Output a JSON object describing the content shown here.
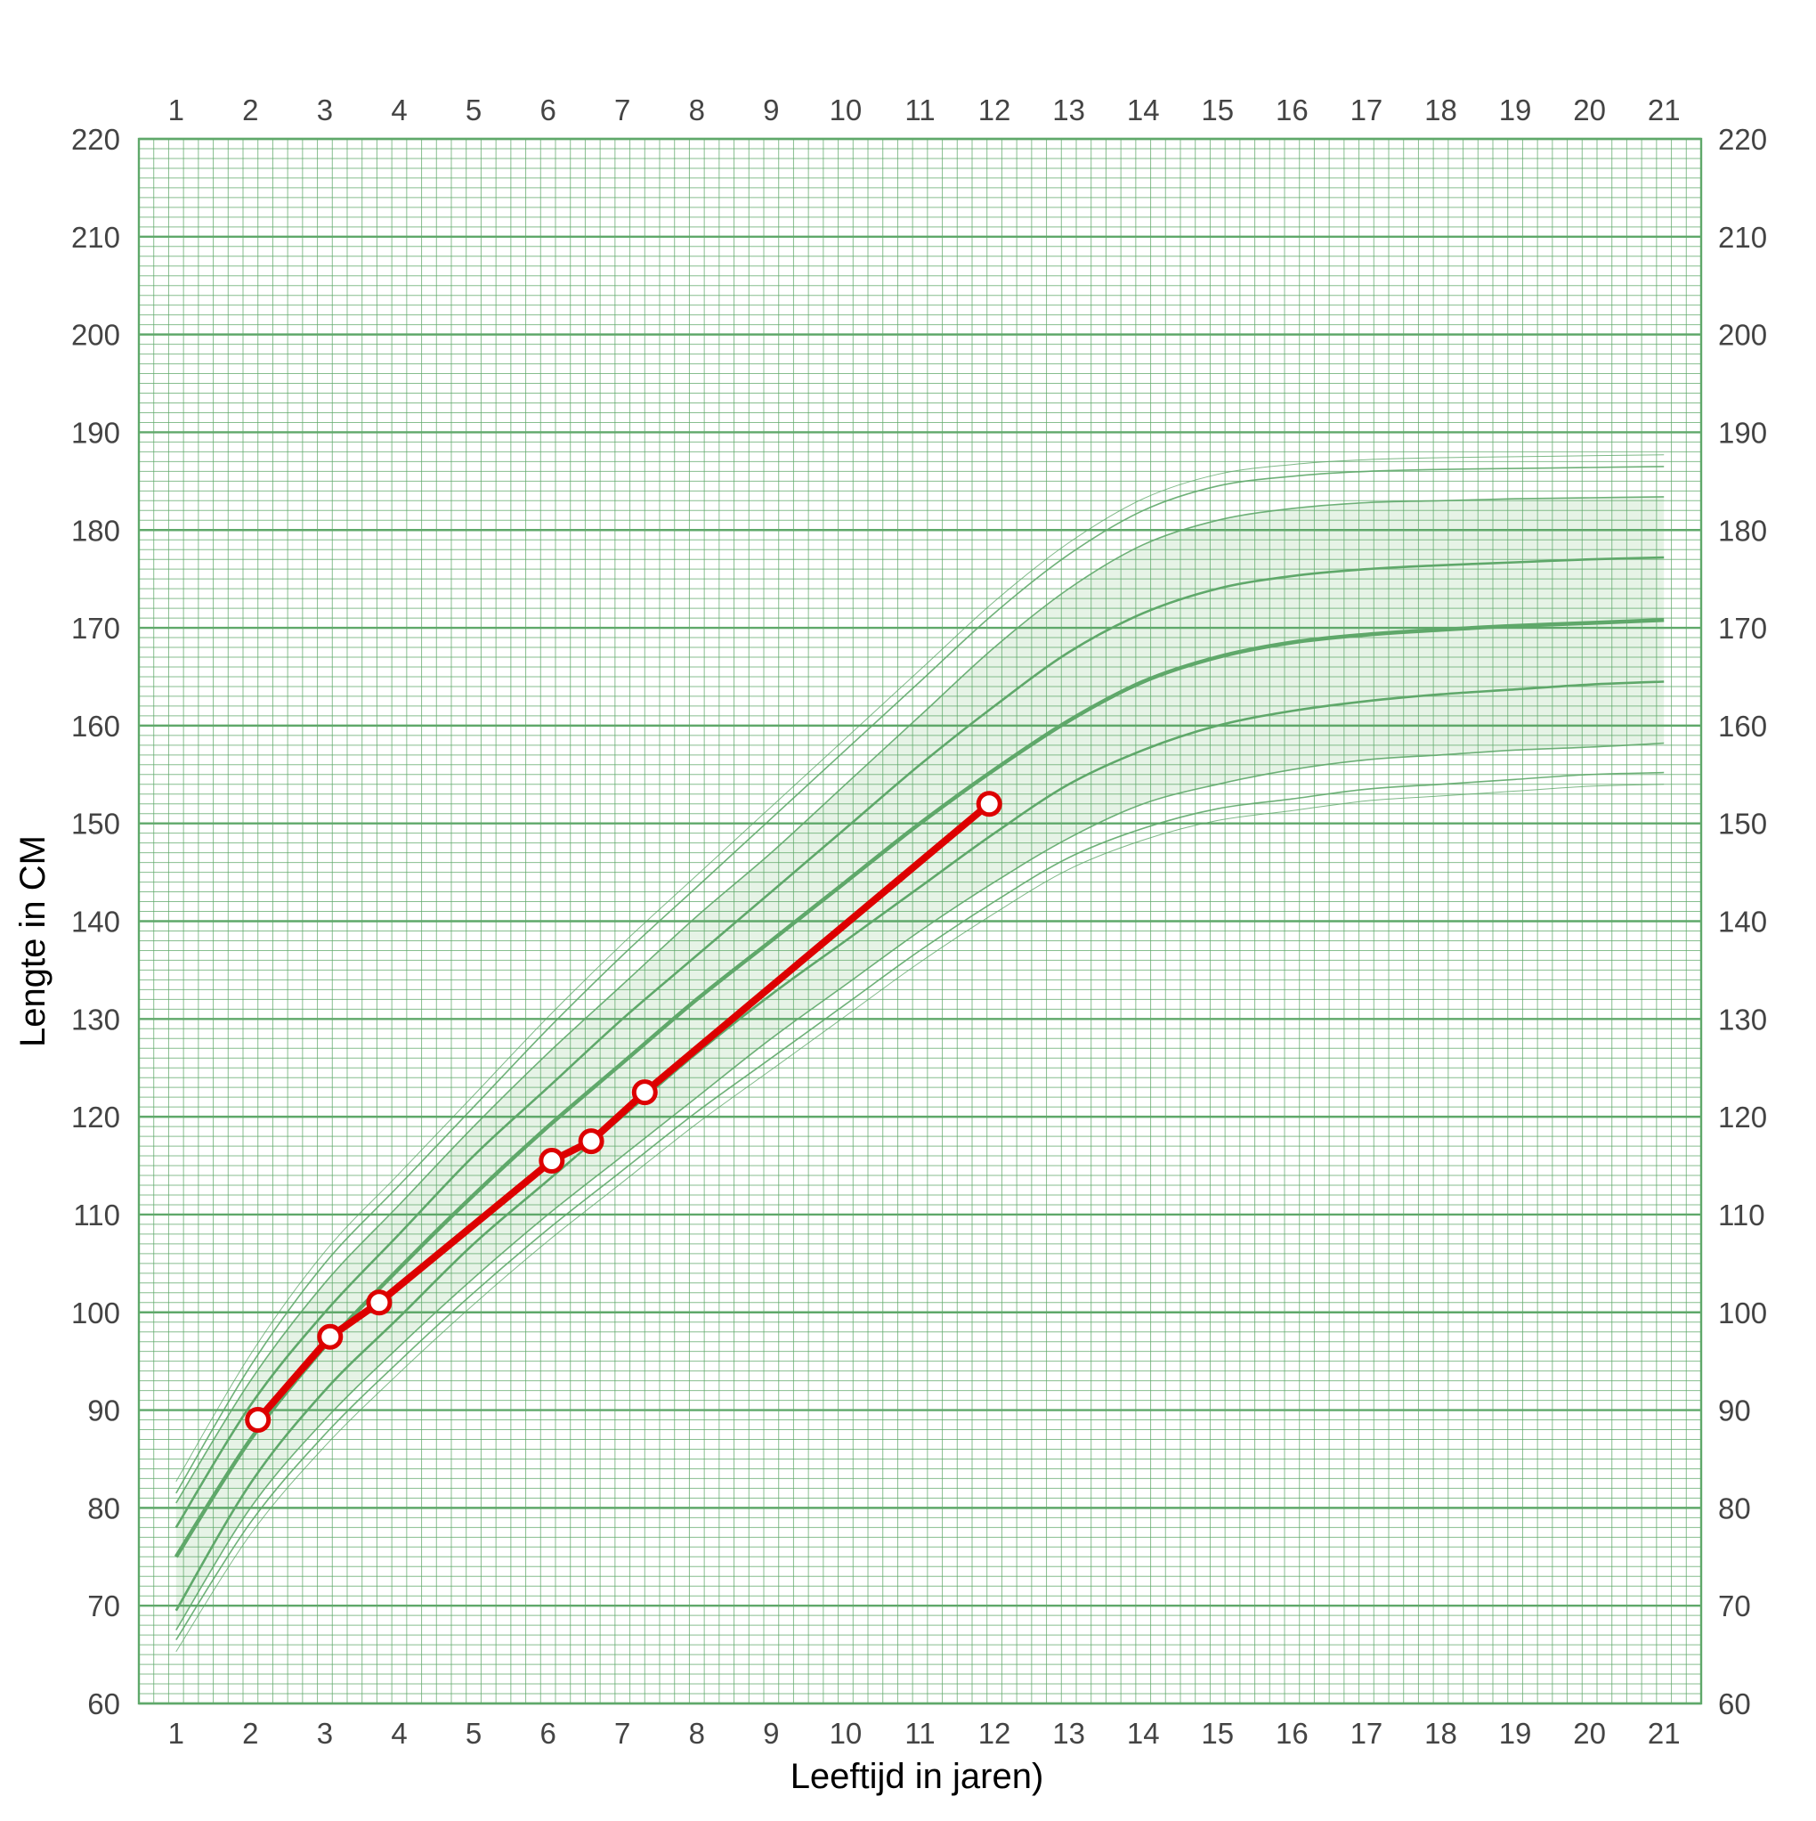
{
  "chart_data": {
    "type": "line",
    "xlabel": "Leeftijd in jaren)",
    "ylabel": "Lengte in CM",
    "xlim": [
      0.5,
      21.5
    ],
    "ylim": [
      60,
      220
    ],
    "x_ticks": [
      1,
      2,
      3,
      4,
      5,
      6,
      7,
      8,
      9,
      10,
      11,
      12,
      13,
      14,
      15,
      16,
      17,
      18,
      19,
      20,
      21
    ],
    "y_ticks": [
      60,
      70,
      80,
      90,
      100,
      110,
      120,
      130,
      140,
      150,
      160,
      170,
      180,
      190,
      200,
      210,
      220
    ],
    "x_minor_step": 0.2,
    "y_minor_step": 1,
    "grid": true,
    "colors": {
      "grid": "#5fa86a",
      "band_fill": "#e6f3e6",
      "series": "#dd0000",
      "marker_fill": "#ffffff"
    },
    "reference_x": [
      1,
      2,
      3,
      4,
      5,
      6,
      7,
      8,
      9,
      10,
      11,
      12,
      13,
      14,
      15,
      16,
      17,
      18,
      19,
      20,
      21
    ],
    "reference_curves": [
      {
        "level": "outer",
        "values": [
          66.5,
          78.5,
          87.5,
          95,
          102,
          108.5,
          114.5,
          120.5,
          126,
          131.5,
          137,
          142,
          146.5,
          149.5,
          151.5,
          152.5,
          153.5,
          154,
          154.5,
          155,
          155.2
        ]
      },
      {
        "level": "outer",
        "values": [
          67.5,
          80,
          89,
          96.5,
          103.5,
          110,
          116,
          122,
          128,
          133.5,
          139,
          144,
          148.5,
          152,
          154,
          155.5,
          156.5,
          157,
          157.5,
          157.8,
          158.2
        ]
      },
      {
        "level": "inner",
        "values": [
          69.5,
          82.5,
          92,
          99.5,
          107,
          113.5,
          120,
          126.5,
          132.5,
          138,
          143.5,
          149,
          154,
          157.5,
          160,
          161.5,
          162.5,
          163.2,
          163.7,
          164.2,
          164.5
        ]
      },
      {
        "level": "median",
        "values": [
          75,
          87,
          96.5,
          104.5,
          112,
          119,
          125.5,
          132,
          138,
          144,
          150,
          155.5,
          160.5,
          164.5,
          167,
          168.5,
          169.3,
          169.8,
          170.2,
          170.5,
          170.8
        ]
      },
      {
        "level": "inner",
        "values": [
          78,
          90.5,
          100,
          108,
          116,
          123,
          130,
          136.5,
          143,
          149.5,
          156,
          162,
          167.5,
          171.5,
          174,
          175.3,
          176,
          176.4,
          176.7,
          177,
          177.2
        ]
      },
      {
        "level": "outer",
        "values": [
          80.5,
          93,
          103,
          111,
          119,
          126.5,
          133.5,
          140.5,
          147,
          154,
          161,
          168,
          174,
          178.5,
          181,
          182.2,
          182.8,
          183,
          183.2,
          183.3,
          183.4
        ]
      },
      {
        "level": "outer",
        "values": [
          81.5,
          94.5,
          105,
          113,
          121,
          129,
          136.5,
          143.5,
          150.5,
          157.5,
          164.5,
          171.5,
          177.5,
          182,
          184.5,
          185.5,
          186,
          186.2,
          186.3,
          186.4,
          186.5
        ]
      }
    ],
    "series": [
      {
        "x": [
          2.1,
          3.07,
          3.73,
          6.05,
          6.58,
          7.3,
          11.93
        ],
        "y": [
          89,
          97.5,
          101,
          115.5,
          117.5,
          122.5,
          152
        ]
      }
    ]
  }
}
